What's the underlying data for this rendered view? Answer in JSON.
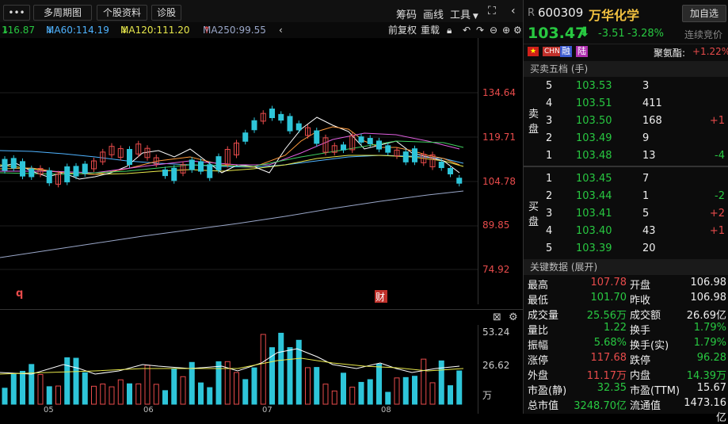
{
  "toolbar": {
    "menu_icon": "more-icon",
    "multi_period": "多周期图",
    "stock_info": "个股资料",
    "diagnose": "诊股",
    "chips": "筹码",
    "draw_line": "画线",
    "tools": "工具"
  },
  "ma": {
    "ma_prev": "116.87",
    "ma60": "MA60:114.19",
    "ma120": "MA120:111.20",
    "ma250": "MA250:99.55"
  },
  "chart_ctrl": {
    "pre_adjust": "前复权",
    "reset": "重载"
  },
  "price_axis": [
    "134.64",
    "119.71",
    "104.78",
    "89.85",
    "74.92"
  ],
  "markers": {
    "q": "q",
    "cai": "财"
  },
  "volume_axis": {
    "top": "53.24",
    "mid": "26.62",
    "unit": "万"
  },
  "x_axis": [
    "05",
    "06",
    "07",
    "08"
  ],
  "stock": {
    "prefix": "R",
    "code": "600309",
    "name": "万华化学",
    "add_watch": "加自选",
    "price": "103.47",
    "change": "-3.51",
    "change_pct": "-3.28%",
    "auction": "连续竞价",
    "tags": [
      "CHN",
      "融",
      "陆"
    ],
    "sector": "聚氨酯:",
    "sector_pct": "+1.22%"
  },
  "order_book": {
    "title": "买卖五档 (手)",
    "sell_label": [
      "卖",
      "盘"
    ],
    "buy_label": [
      "买",
      "盘"
    ],
    "sells": [
      {
        "level": "5",
        "price": "103.53",
        "vol": "3",
        "delta": ""
      },
      {
        "level": "4",
        "price": "103.51",
        "vol": "411",
        "delta": ""
      },
      {
        "level": "3",
        "price": "103.50",
        "vol": "168",
        "delta": "+1"
      },
      {
        "level": "2",
        "price": "103.49",
        "vol": "9",
        "delta": ""
      },
      {
        "level": "1",
        "price": "103.48",
        "vol": "13",
        "delta": "-4"
      }
    ],
    "buys": [
      {
        "level": "1",
        "price": "103.45",
        "vol": "7",
        "delta": ""
      },
      {
        "level": "2",
        "price": "103.44",
        "vol": "1",
        "delta": "-2"
      },
      {
        "level": "3",
        "price": "103.41",
        "vol": "5",
        "delta": "+2"
      },
      {
        "level": "4",
        "price": "103.40",
        "vol": "43",
        "delta": "+1"
      },
      {
        "level": "5",
        "price": "103.39",
        "vol": "20",
        "delta": ""
      }
    ]
  },
  "key_data": {
    "title": "关键数据 (展开)",
    "rows": [
      {
        "l1": "最高",
        "v1": "107.78",
        "l2": "开盘",
        "v2": "106.98"
      },
      {
        "l1": "最低",
        "v1": "101.70",
        "l2": "昨收",
        "v2": "106.98"
      },
      {
        "l1": "成交量",
        "v1": "25.56万",
        "l2": "成交额",
        "v2": "26.69亿"
      },
      {
        "l1": "量比",
        "v1": "1.22",
        "l2": "换手",
        "v2": "1.79%"
      },
      {
        "l1": "振幅",
        "v1": "5.68%",
        "l2": "换手(实)",
        "v2": "1.79%"
      },
      {
        "l1": "涨停",
        "v1": "117.68",
        "l2": "跌停",
        "v2": "96.28"
      },
      {
        "l1": "外盘",
        "v1": "11.17万",
        "l2": "内盘",
        "v2": "14.39万"
      },
      {
        "l1": "市盈(静)",
        "v1": "32.35",
        "l2": "市盈(TTM)",
        "v2": "15.67"
      },
      {
        "l1": "总市值",
        "v1": "3248.70亿",
        "l2": "流通值",
        "v2": "1473.16亿"
      }
    ]
  }
}
